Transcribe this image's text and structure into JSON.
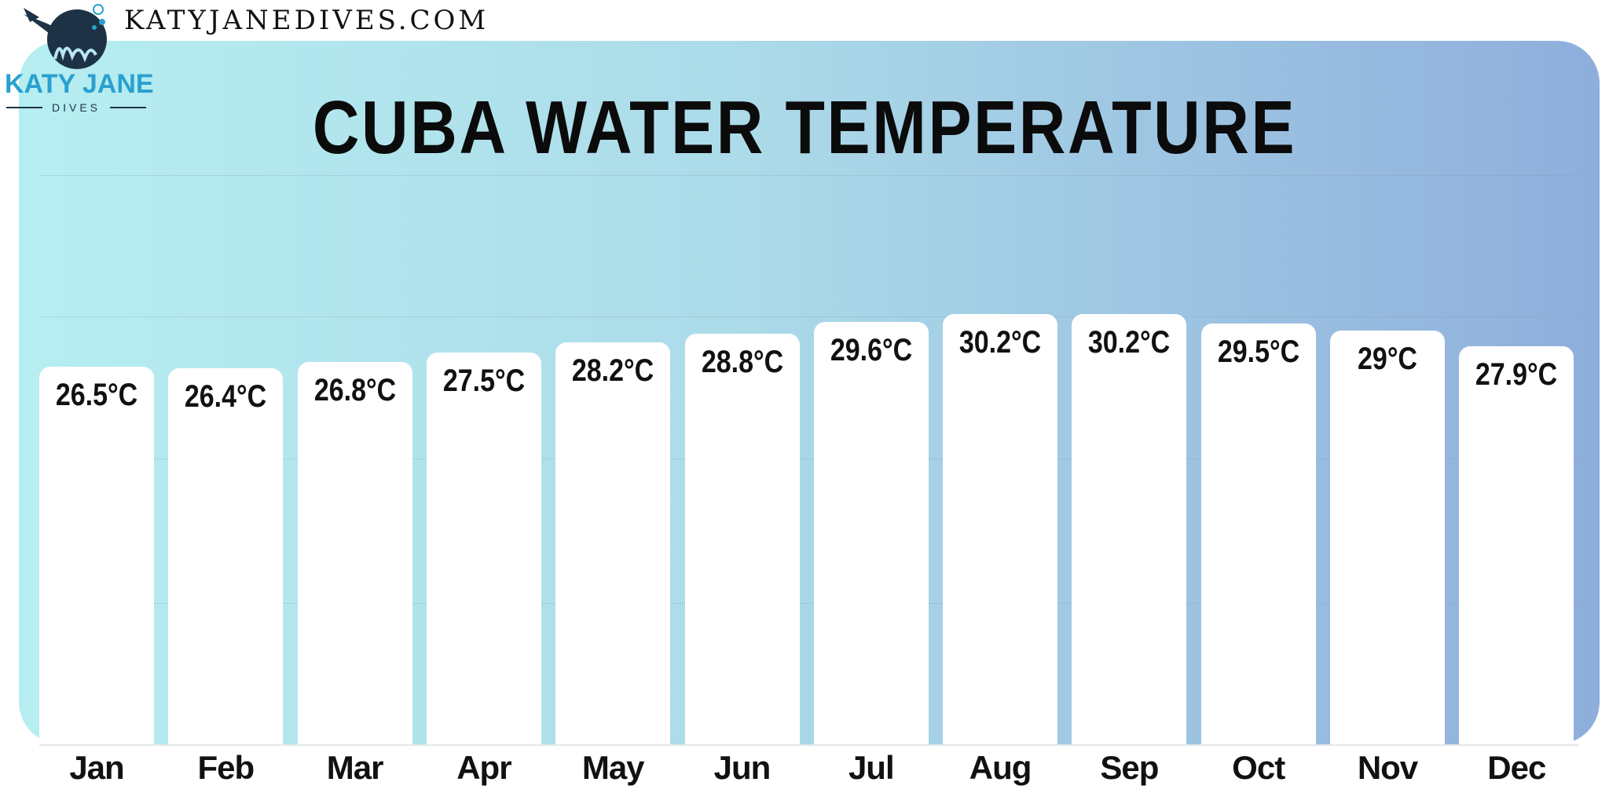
{
  "site_url": "KATYJANEDIVES.COM",
  "logo": {
    "brand": "KATY JANE",
    "sub": "DIVES"
  },
  "colors": {
    "gradient_left": "#b6eef1",
    "gradient_right": "#8eaedb",
    "bars": "#ffffff",
    "brand_blue": "#2aa0cf",
    "brand_navy": "#1d3345"
  },
  "chart_data": {
    "type": "bar",
    "title": "CUBA WATER TEMPERATURE",
    "categories": [
      "Jan",
      "Feb",
      "Mar",
      "Apr",
      "May",
      "Jun",
      "Jul",
      "Aug",
      "Sep",
      "Oct",
      "Nov",
      "Dec"
    ],
    "values": [
      26.5,
      26.4,
      26.8,
      27.5,
      28.2,
      28.8,
      29.6,
      30.2,
      30.2,
      29.5,
      29,
      27.9
    ],
    "labels": [
      "26.5°C",
      "26.4°C",
      "26.8°C",
      "27.5°C",
      "28.2°C",
      "28.8°C",
      "29.6°C",
      "30.2°C",
      "30.2°C",
      "29.5°C",
      "29°C",
      "27.9°C"
    ],
    "unit": "°C",
    "ylim": [
      0,
      36
    ],
    "grid": true,
    "legend": "none"
  }
}
